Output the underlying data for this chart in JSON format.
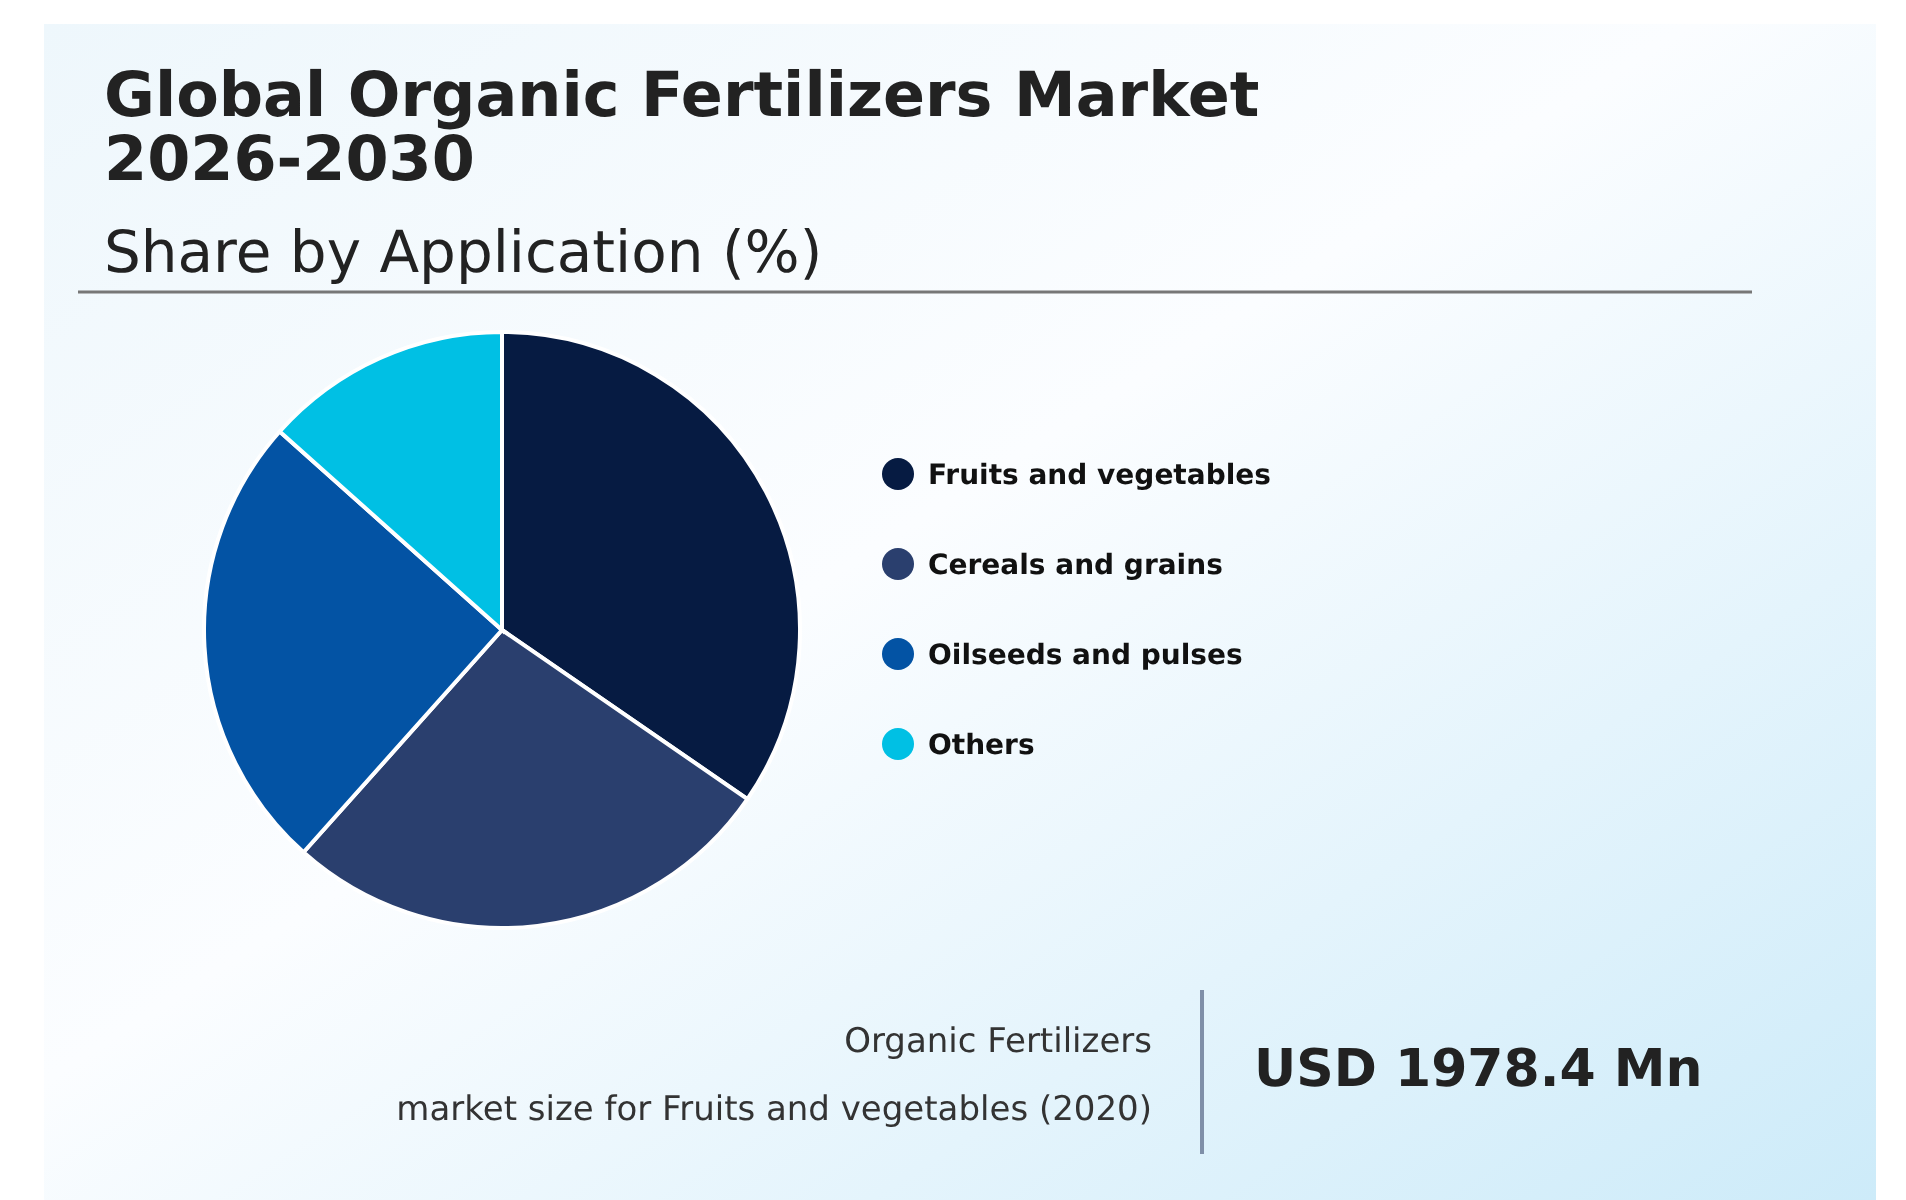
{
  "chart_data": {
    "type": "pie",
    "title": "Global Organic Fertilizers Market 2026-2030",
    "subtitle": "Share by Application (%)",
    "categories": [
      "Fruits and vegetables",
      "Cereals and grains",
      "Oilseeds and pulses",
      "Others"
    ],
    "values": [
      34.6,
      27,
      25,
      13.4
    ],
    "colors": [
      "#061b42",
      "#2a3f6e",
      "#0353a4",
      "#00c0e4"
    ],
    "legend": "right",
    "annotations": [
      "Organic Fertilizers",
      "market size for Fruits and vegetables (2020)",
      "USD 1978.4 Mn"
    ]
  }
}
